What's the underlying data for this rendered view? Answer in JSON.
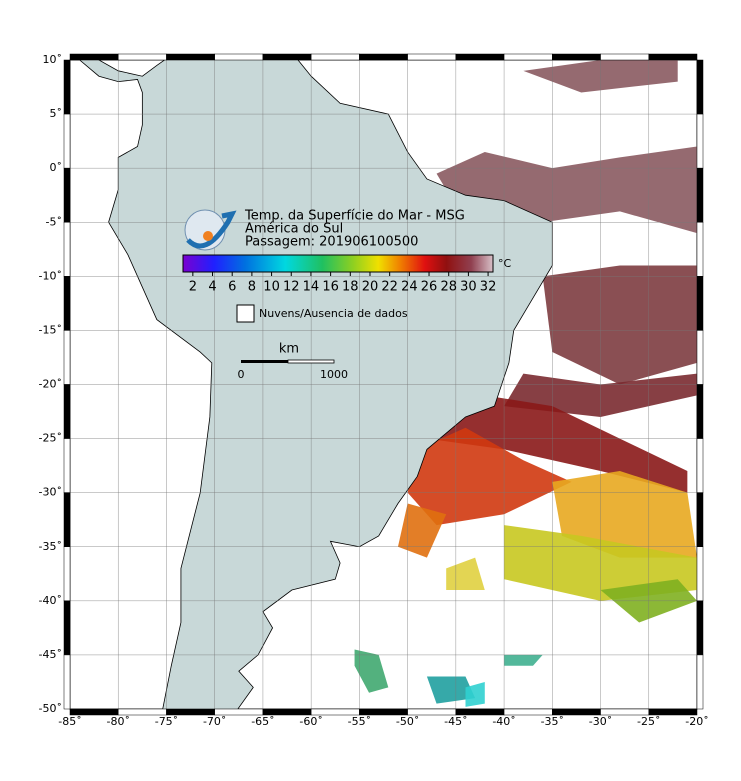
{
  "title_lines": [
    "Temp. da Superfície do Mar - MSG",
    "América do Sul",
    "Passagem: 201906100500"
  ],
  "colorbar": {
    "unit": "°C",
    "range": [
      1,
      32.5
    ],
    "ticks": [
      2,
      4,
      6,
      8,
      10,
      12,
      14,
      16,
      18,
      20,
      22,
      24,
      26,
      28,
      30,
      32
    ]
  },
  "legend": "Nuvens/Ausencia de dados",
  "scale_bar": {
    "unit": "km",
    "labels": [
      "0",
      "1000"
    ]
  },
  "map": {
    "lon_range": [
      -85,
      -20
    ],
    "lat_range": [
      -50,
      10
    ],
    "lon_ticks": [
      {
        "value": -85,
        "label": "-85˚"
      },
      {
        "value": -80,
        "label": "-80˚"
      },
      {
        "value": -75,
        "label": "-75˚"
      },
      {
        "value": -70,
        "label": "-70˚"
      },
      {
        "value": -65,
        "label": "-65˚"
      },
      {
        "value": -60,
        "label": "-60˚"
      },
      {
        "value": -55,
        "label": "-55˚"
      },
      {
        "value": -50,
        "label": "-50˚"
      },
      {
        "value": -45,
        "label": "-45˚"
      },
      {
        "value": -40,
        "label": "-40˚"
      },
      {
        "value": -35,
        "label": "-35˚"
      },
      {
        "value": -30,
        "label": "-30˚"
      },
      {
        "value": -25,
        "label": "-25˚"
      },
      {
        "value": -20,
        "label": "-20˚"
      }
    ],
    "lat_ticks": [
      {
        "value": 10,
        "label": "10˚"
      },
      {
        "value": 5,
        "label": "5˚"
      },
      {
        "value": 0,
        "label": "0˚"
      },
      {
        "value": -5,
        "label": "-5˚"
      },
      {
        "value": -10,
        "label": "-10˚"
      },
      {
        "value": -15,
        "label": "-15˚"
      },
      {
        "value": -20,
        "label": "-20˚"
      },
      {
        "value": -25,
        "label": "-25˚"
      },
      {
        "value": -30,
        "label": "-30˚"
      },
      {
        "value": -35,
        "label": "-35˚"
      },
      {
        "value": -40,
        "label": "-40˚"
      },
      {
        "value": -45,
        "label": "-45˚"
      },
      {
        "value": -50,
        "label": "-50˚"
      }
    ]
  }
}
